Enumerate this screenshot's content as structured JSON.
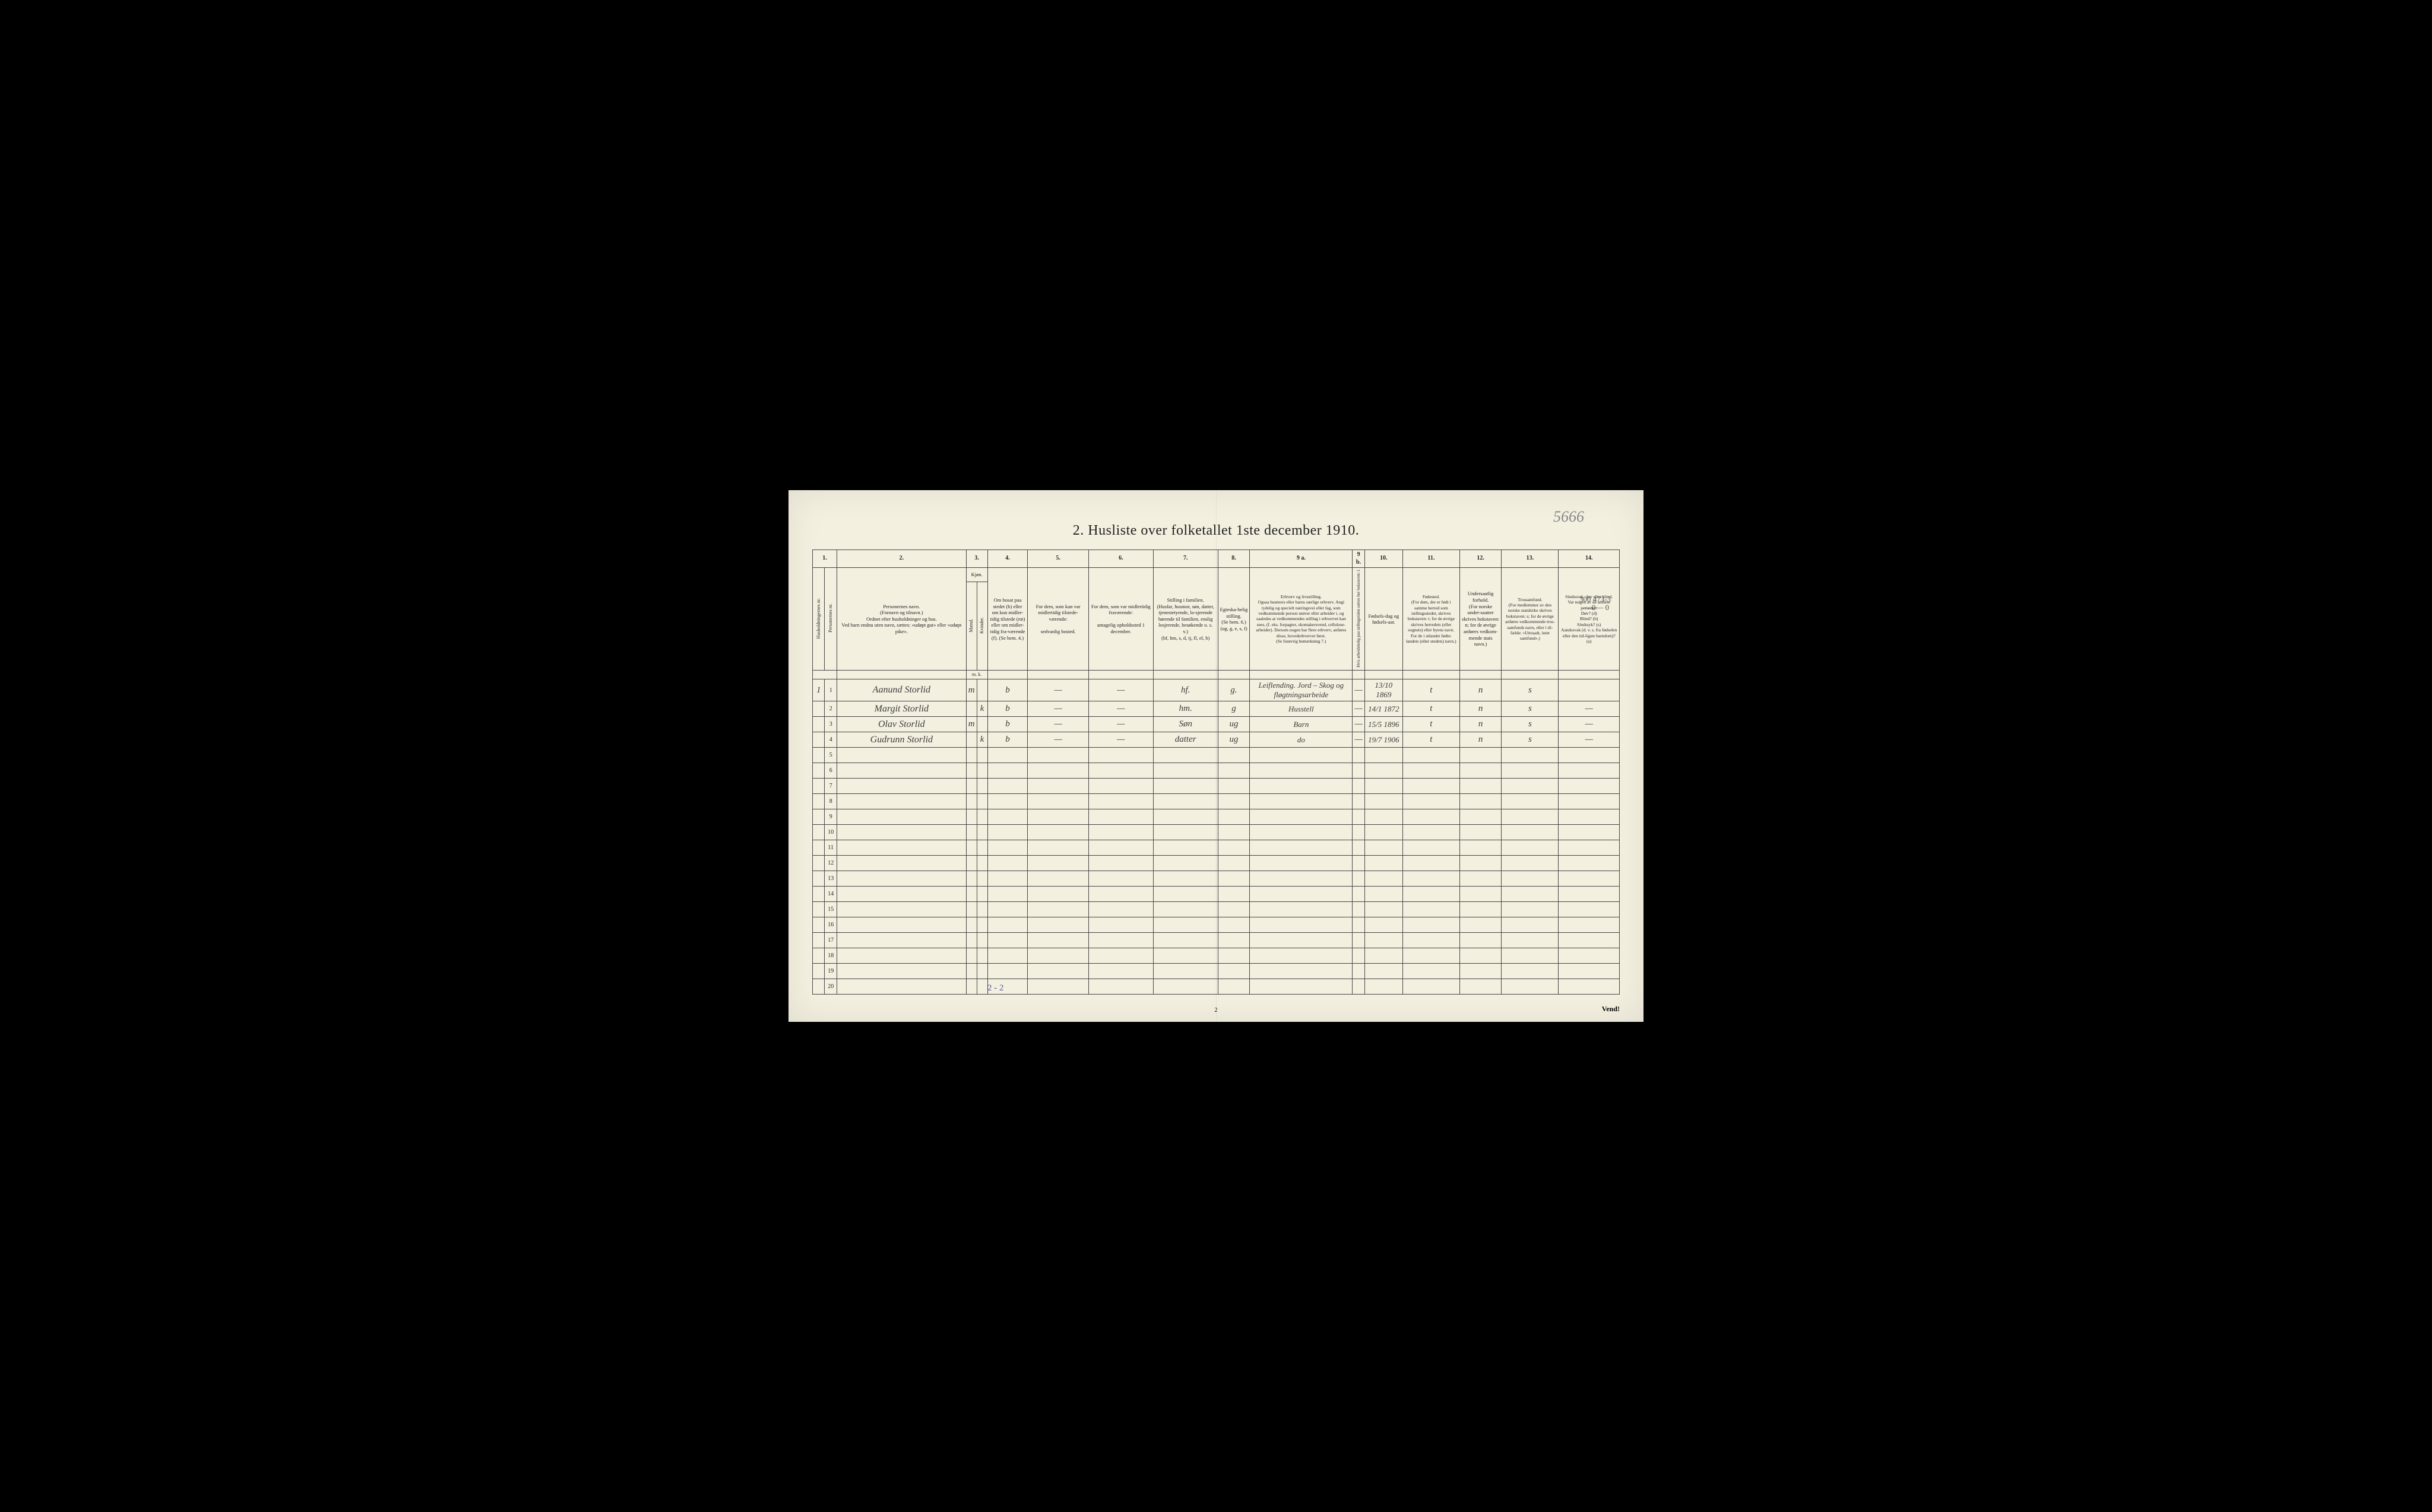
{
  "handwritten_corner": "5666",
  "title": "2.  Husliste over folketallet 1ste december 1910.",
  "col_numbers": [
    "1.",
    "2.",
    "3.",
    "4.",
    "5.",
    "6.",
    "7.",
    "8.",
    "9 a.",
    "9 b.",
    "10.",
    "11.",
    "12.",
    "13.",
    "14."
  ],
  "headers": {
    "c1a": "Husholdningernes nr.",
    "c1b": "Personernes nr.",
    "c2": "Personernes navn.\n(Fornavn og tilnavn.)\nOrdnet efter husholdninger og hus.\nVed barn endnu uten navn, sættes: «udøpt gut» eller «udøpt pike».",
    "c3": "Kjøn.",
    "c3a": "Mænd.",
    "c3b": "Kvinder.",
    "c4": "Om bosat paa stedet (b) eller om kun midler-tidig tilstede (mt) eller om midler-tidig fra-værende (f). (Se bem. 4.)",
    "c5": "For dem, som kun var midlertidig tilstede-værende:\n\nsedvanlig bosted.",
    "c6": "For dem, som var midlertidig fraværende:\n\nantagelig opholdssted 1 december.",
    "c7": "Stilling i familien.\n(Husfar, husmor, søn, datter, tjenestetyende, lo-sjerende hørende til familien, enslig losjerende, besøkende o. s. v.)\n(hf, hm, s, d, tj, fl, el, b)",
    "c8": "Egteska-belig stilling.\n(Se bem. 6.)\n(ug, g, e, s, f)",
    "c9a": "Erhverv og livsstilling.\nOgsaa husmors eller barns særlige erhverv. Angi tydelig og specielt næringsvei eller fag, som vedkommende person utøver eller arbeider i, og saaledes at vedkommendes stilling i erhvervet kan sees, (f. eks. forpagter, skomakersvend, cellulose-arbeider). Dersom nogen har flere erhverv, anføres disse, hovederhvervet først.\n(Se forøvrig bemerkning 7.)",
    "c9b": "Hvis arbeidsledig paa tællingstiden sættes her bokstaven: l.",
    "c10": "Fødsels-dag og fødsels-aar.",
    "c11": "Fødested.\n(For dem, der er født i samme herred som tællingsstedet, skrives bokstaven: t; for de øvrige skrives herredets (eller sognets) eller byens navn. For de i utlandet fødte: landets (eller stedets) navn.)",
    "c12": "Undersaatlig forhold.\n(For norske under-saatter skrives bokstaven: n; for de øvrige anføres vedkom-mende stats navn.)",
    "c13": "Trossamfund.\n(For medlemmer av den norske statskirke skrives bokstaven: s; for de øvrige anføres vedkommende tros-samfunds navn, eller i til-fælde: «Uttraadt, intet samfund».)",
    "c14": "Sindssvak, døv eller blind.\nVar nogen av de anførte personer:\nDøv? (d)\nBlind? (b)\nSindssyk? (s)\nAandssvak (d. v. s. fra fødselen eller den tid-ligste barndom)? (a)",
    "mk": "m. k."
  },
  "margin_note_top": "300   473-3",
  "margin_note_top2": "—0—     0",
  "rows": [
    {
      "hh": "1",
      "pn": "1",
      "name": "Aanund Storlid",
      "sex_m": "m",
      "sex_k": "",
      "res": "b",
      "c5": "—",
      "c6": "—",
      "fam": "hf.",
      "mar": "g.",
      "occ": "Leiflending. Jord – Skog og fløgtningsarbeide",
      "c9b": "—",
      "dob": "13/10 1869",
      "birthplace": "t",
      "nat": "n",
      "rel": "s",
      "c14": ""
    },
    {
      "hh": "",
      "pn": "2",
      "name": "Margit Storlid",
      "sex_m": "",
      "sex_k": "k",
      "res": "b",
      "c5": "—",
      "c6": "—",
      "fam": "hm.",
      "mar": "g",
      "occ": "Husstell",
      "c9b": "—",
      "dob": "14/1 1872",
      "birthplace": "t",
      "nat": "n",
      "rel": "s",
      "c14": "—"
    },
    {
      "hh": "",
      "pn": "3",
      "name": "Olav Storlid",
      "sex_m": "m",
      "sex_k": "",
      "res": "b",
      "c5": "—",
      "c6": "—",
      "fam": "Søn",
      "mar": "ug",
      "occ": "Barn",
      "c9b": "—",
      "dob": "15/5 1896",
      "birthplace": "t",
      "nat": "n",
      "rel": "s",
      "c14": "—"
    },
    {
      "hh": "",
      "pn": "4",
      "name": "Gudrunn Storlid",
      "sex_m": "",
      "sex_k": "k",
      "res": "b",
      "c5": "—",
      "c6": "—",
      "fam": "datter",
      "mar": "ug",
      "occ": "do",
      "c9b": "—",
      "dob": "19/7 1906",
      "birthplace": "t",
      "nat": "n",
      "rel": "s",
      "c14": "—"
    }
  ],
  "empty_rows": [
    5,
    6,
    7,
    8,
    9,
    10,
    11,
    12,
    13,
    14,
    15,
    16,
    17,
    18,
    19,
    20
  ],
  "bottom_tally": "2 - 2",
  "page_num_bottom": "2",
  "vend": "Vend!",
  "colors": {
    "paper": "#f4f0e0",
    "ink": "#222222",
    "border": "#444444",
    "handwriting": "#3a3a3a",
    "pencil": "#888888"
  },
  "col_widths_pct": [
    1.6,
    1.6,
    17.0,
    1.4,
    1.4,
    5.3,
    8.0,
    8.5,
    8.5,
    4.2,
    13.5,
    1.6,
    5.0,
    7.5,
    5.5,
    7.5,
    8.0
  ]
}
